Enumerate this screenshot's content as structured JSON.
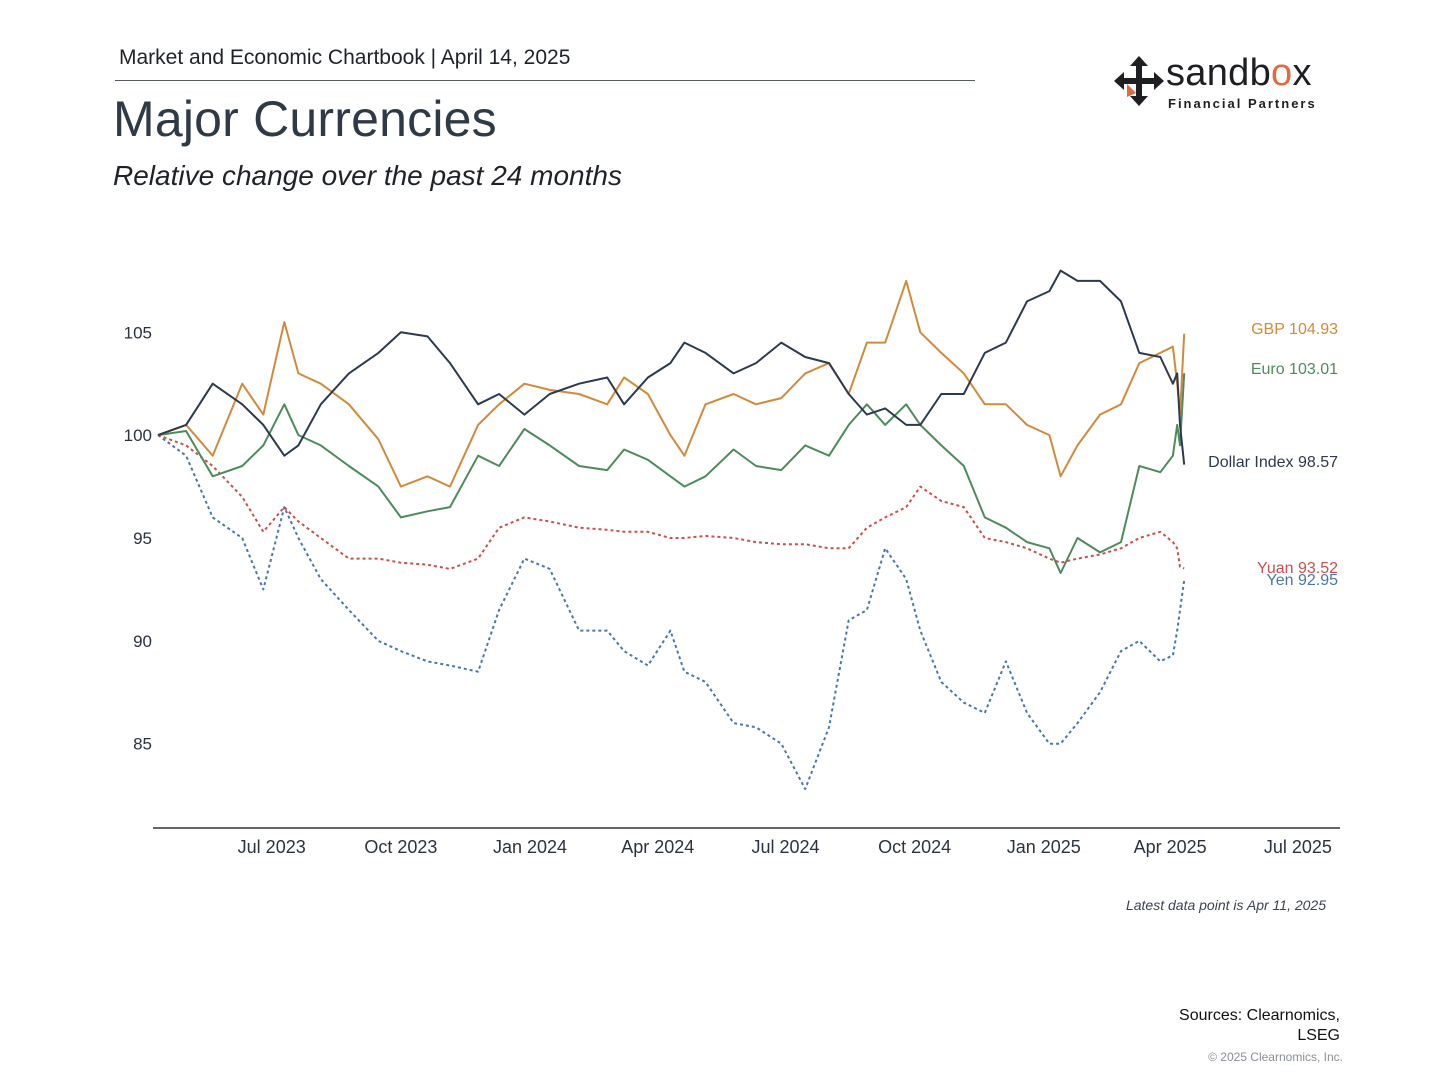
{
  "header": {
    "chartbook": "Market and Economic Chartbook | April 14, 2025",
    "title": "Major Currencies",
    "subtitle": "Relative change over the past 24 months"
  },
  "logo": {
    "word_main": "sandb",
    "word_accent": "o",
    "word_tail": "x",
    "tagline": "Financial Partners",
    "icon": "arrows-cross-icon",
    "colors": {
      "dark": "#1d1f22",
      "accent": "#e46a3d"
    }
  },
  "footer": {
    "latest": "Latest data point is Apr 11, 2025",
    "sources": "Sources: Clearnomics, LSEG",
    "copyright": "© 2025 Clearnomics, Inc."
  },
  "chart_data": {
    "type": "line",
    "title": "Major Currencies",
    "subtitle": "Relative change over the past 24 months",
    "xlabel": "",
    "ylabel": "",
    "grid": false,
    "x_range": [
      "2023-04-11",
      "2025-07-31"
    ],
    "ylim": [
      81,
      109
    ],
    "x_ticks": [
      {
        "date": "2023-07-01",
        "label": "Jul 2023"
      },
      {
        "date": "2023-10-01",
        "label": "Oct 2023"
      },
      {
        "date": "2024-01-01",
        "label": "Jan 2024"
      },
      {
        "date": "2024-04-01",
        "label": "Apr 2024"
      },
      {
        "date": "2024-07-01",
        "label": "Jul 2024"
      },
      {
        "date": "2024-10-01",
        "label": "Oct 2024"
      },
      {
        "date": "2025-01-01",
        "label": "Jan 2025"
      },
      {
        "date": "2025-04-01",
        "label": "Apr 2025"
      },
      {
        "date": "2025-07-01",
        "label": "Jul 2025"
      }
    ],
    "y_ticks": [
      85,
      90,
      95,
      100,
      105
    ],
    "series": [
      {
        "name": "GBP",
        "label": "GBP 104.93",
        "color": "#d18a3c",
        "dash": false,
        "points": [
          [
            "2023-04-11",
            100
          ],
          [
            "2023-05-01",
            100.5
          ],
          [
            "2023-05-20",
            99
          ],
          [
            "2023-06-10",
            102.5
          ],
          [
            "2023-06-25",
            101
          ],
          [
            "2023-07-10",
            105.5
          ],
          [
            "2023-07-20",
            103
          ],
          [
            "2023-08-05",
            102.5
          ],
          [
            "2023-08-25",
            101.5
          ],
          [
            "2023-09-15",
            99.8
          ],
          [
            "2023-10-01",
            97.5
          ],
          [
            "2023-10-20",
            98
          ],
          [
            "2023-11-05",
            97.5
          ],
          [
            "2023-11-25",
            100.5
          ],
          [
            "2023-12-10",
            101.5
          ],
          [
            "2023-12-28",
            102.5
          ],
          [
            "2024-01-15",
            102.2
          ],
          [
            "2024-02-05",
            102
          ],
          [
            "2024-02-25",
            101.5
          ],
          [
            "2024-03-08",
            102.8
          ],
          [
            "2024-03-25",
            102
          ],
          [
            "2024-04-10",
            100
          ],
          [
            "2024-04-20",
            99
          ],
          [
            "2024-05-05",
            101.5
          ],
          [
            "2024-05-25",
            102
          ],
          [
            "2024-06-10",
            101.5
          ],
          [
            "2024-06-28",
            101.8
          ],
          [
            "2024-07-15",
            103
          ],
          [
            "2024-08-01",
            103.5
          ],
          [
            "2024-08-15",
            102
          ],
          [
            "2024-08-28",
            104.5
          ],
          [
            "2024-09-10",
            104.5
          ],
          [
            "2024-09-25",
            107.5
          ],
          [
            "2024-10-05",
            105
          ],
          [
            "2024-10-20",
            104
          ],
          [
            "2024-11-05",
            103
          ],
          [
            "2024-11-20",
            101.5
          ],
          [
            "2024-12-05",
            101.5
          ],
          [
            "2024-12-20",
            100.5
          ],
          [
            "2025-01-05",
            100
          ],
          [
            "2025-01-13",
            98
          ],
          [
            "2025-01-25",
            99.5
          ],
          [
            "2025-02-10",
            101
          ],
          [
            "2025-02-25",
            101.5
          ],
          [
            "2025-03-10",
            103.5
          ],
          [
            "2025-03-25",
            104
          ],
          [
            "2025-04-03",
            104.3
          ],
          [
            "2025-04-06",
            102.5
          ],
          [
            "2025-04-08",
            101
          ],
          [
            "2025-04-11",
            104.93
          ]
        ]
      },
      {
        "name": "Euro",
        "label": "Euro 103.01",
        "color": "#4f8a5e",
        "dash": false,
        "points": [
          [
            "2023-04-11",
            100
          ],
          [
            "2023-05-01",
            100.2
          ],
          [
            "2023-05-20",
            98
          ],
          [
            "2023-06-10",
            98.5
          ],
          [
            "2023-06-25",
            99.5
          ],
          [
            "2023-07-10",
            101.5
          ],
          [
            "2023-07-20",
            100
          ],
          [
            "2023-08-05",
            99.5
          ],
          [
            "2023-08-25",
            98.5
          ],
          [
            "2023-09-15",
            97.5
          ],
          [
            "2023-10-01",
            96
          ],
          [
            "2023-10-20",
            96.3
          ],
          [
            "2023-11-05",
            96.5
          ],
          [
            "2023-11-25",
            99
          ],
          [
            "2023-12-10",
            98.5
          ],
          [
            "2023-12-28",
            100.3
          ],
          [
            "2024-01-15",
            99.5
          ],
          [
            "2024-02-05",
            98.5
          ],
          [
            "2024-02-25",
            98.3
          ],
          [
            "2024-03-08",
            99.3
          ],
          [
            "2024-03-25",
            98.8
          ],
          [
            "2024-04-10",
            98
          ],
          [
            "2024-04-20",
            97.5
          ],
          [
            "2024-05-05",
            98
          ],
          [
            "2024-05-25",
            99.3
          ],
          [
            "2024-06-10",
            98.5
          ],
          [
            "2024-06-28",
            98.3
          ],
          [
            "2024-07-15",
            99.5
          ],
          [
            "2024-08-01",
            99
          ],
          [
            "2024-08-15",
            100.5
          ],
          [
            "2024-08-28",
            101.5
          ],
          [
            "2024-09-10",
            100.5
          ],
          [
            "2024-09-25",
            101.5
          ],
          [
            "2024-10-05",
            100.5
          ],
          [
            "2024-10-20",
            99.5
          ],
          [
            "2024-11-05",
            98.5
          ],
          [
            "2024-11-20",
            96
          ],
          [
            "2024-12-05",
            95.5
          ],
          [
            "2024-12-20",
            94.8
          ],
          [
            "2025-01-05",
            94.5
          ],
          [
            "2025-01-13",
            93.3
          ],
          [
            "2025-01-25",
            95
          ],
          [
            "2025-02-10",
            94.3
          ],
          [
            "2025-02-25",
            94.8
          ],
          [
            "2025-03-10",
            98.5
          ],
          [
            "2025-03-25",
            98.2
          ],
          [
            "2025-04-03",
            99
          ],
          [
            "2025-04-06",
            100.5
          ],
          [
            "2025-04-08",
            99.5
          ],
          [
            "2025-04-11",
            103.01
          ]
        ]
      },
      {
        "name": "Dollar Index",
        "label": "Dollar Index 98.57",
        "color": "#2d3a4d",
        "dash": false,
        "points": [
          [
            "2023-04-11",
            100
          ],
          [
            "2023-05-01",
            100.5
          ],
          [
            "2023-05-20",
            102.5
          ],
          [
            "2023-06-10",
            101.5
          ],
          [
            "2023-06-25",
            100.5
          ],
          [
            "2023-07-10",
            99
          ],
          [
            "2023-07-20",
            99.5
          ],
          [
            "2023-08-05",
            101.5
          ],
          [
            "2023-08-25",
            103
          ],
          [
            "2023-09-15",
            104
          ],
          [
            "2023-10-01",
            105
          ],
          [
            "2023-10-20",
            104.8
          ],
          [
            "2023-11-05",
            103.5
          ],
          [
            "2023-11-25",
            101.5
          ],
          [
            "2023-12-10",
            102
          ],
          [
            "2023-12-28",
            101
          ],
          [
            "2024-01-15",
            102
          ],
          [
            "2024-02-05",
            102.5
          ],
          [
            "2024-02-25",
            102.8
          ],
          [
            "2024-03-08",
            101.5
          ],
          [
            "2024-03-25",
            102.8
          ],
          [
            "2024-04-10",
            103.5
          ],
          [
            "2024-04-20",
            104.5
          ],
          [
            "2024-05-05",
            104
          ],
          [
            "2024-05-25",
            103
          ],
          [
            "2024-06-10",
            103.5
          ],
          [
            "2024-06-28",
            104.5
          ],
          [
            "2024-07-15",
            103.8
          ],
          [
            "2024-08-01",
            103.5
          ],
          [
            "2024-08-15",
            102
          ],
          [
            "2024-08-28",
            101
          ],
          [
            "2024-09-10",
            101.3
          ],
          [
            "2024-09-25",
            100.5
          ],
          [
            "2024-10-05",
            100.5
          ],
          [
            "2024-10-20",
            102
          ],
          [
            "2024-11-05",
            102
          ],
          [
            "2024-11-20",
            104
          ],
          [
            "2024-12-05",
            104.5
          ],
          [
            "2024-12-20",
            106.5
          ],
          [
            "2025-01-05",
            107
          ],
          [
            "2025-01-13",
            108
          ],
          [
            "2025-01-25",
            107.5
          ],
          [
            "2025-02-10",
            107.5
          ],
          [
            "2025-02-25",
            106.5
          ],
          [
            "2025-03-10",
            104
          ],
          [
            "2025-03-25",
            103.8
          ],
          [
            "2025-04-03",
            102.5
          ],
          [
            "2025-04-06",
            103
          ],
          [
            "2025-04-08",
            100.5
          ],
          [
            "2025-04-11",
            98.57
          ]
        ]
      },
      {
        "name": "Yuan",
        "label": "Yuan 93.52",
        "color": "#c9504b",
        "dash": true,
        "points": [
          [
            "2023-04-11",
            100
          ],
          [
            "2023-05-01",
            99.5
          ],
          [
            "2023-05-20",
            98.5
          ],
          [
            "2023-06-10",
            97
          ],
          [
            "2023-06-25",
            95.3
          ],
          [
            "2023-07-10",
            96.5
          ],
          [
            "2023-07-20",
            95.8
          ],
          [
            "2023-08-05",
            95
          ],
          [
            "2023-08-25",
            94
          ],
          [
            "2023-09-15",
            94
          ],
          [
            "2023-10-01",
            93.8
          ],
          [
            "2023-10-20",
            93.7
          ],
          [
            "2023-11-05",
            93.5
          ],
          [
            "2023-11-25",
            94
          ],
          [
            "2023-12-10",
            95.5
          ],
          [
            "2023-12-28",
            96
          ],
          [
            "2024-01-15",
            95.8
          ],
          [
            "2024-02-05",
            95.5
          ],
          [
            "2024-02-25",
            95.4
          ],
          [
            "2024-03-08",
            95.3
          ],
          [
            "2024-03-25",
            95.3
          ],
          [
            "2024-04-10",
            95
          ],
          [
            "2024-04-20",
            95
          ],
          [
            "2024-05-05",
            95.1
          ],
          [
            "2024-05-25",
            95
          ],
          [
            "2024-06-10",
            94.8
          ],
          [
            "2024-06-28",
            94.7
          ],
          [
            "2024-07-15",
            94.7
          ],
          [
            "2024-08-01",
            94.5
          ],
          [
            "2024-08-15",
            94.5
          ],
          [
            "2024-08-28",
            95.5
          ],
          [
            "2024-09-10",
            96
          ],
          [
            "2024-09-25",
            96.5
          ],
          [
            "2024-10-05",
            97.5
          ],
          [
            "2024-10-20",
            96.8
          ],
          [
            "2024-11-05",
            96.5
          ],
          [
            "2024-11-20",
            95
          ],
          [
            "2024-12-05",
            94.8
          ],
          [
            "2024-12-20",
            94.5
          ],
          [
            "2025-01-05",
            94
          ],
          [
            "2025-01-13",
            93.8
          ],
          [
            "2025-01-25",
            94
          ],
          [
            "2025-02-10",
            94.2
          ],
          [
            "2025-02-25",
            94.5
          ],
          [
            "2025-03-10",
            95
          ],
          [
            "2025-03-25",
            95.3
          ],
          [
            "2025-04-03",
            94.8
          ],
          [
            "2025-04-06",
            94.5
          ],
          [
            "2025-04-08",
            93.6
          ],
          [
            "2025-04-11",
            93.52
          ]
        ]
      },
      {
        "name": "Yen",
        "label": "Yen 92.95",
        "color": "#4a76a8",
        "dash": true,
        "points": [
          [
            "2023-04-11",
            100
          ],
          [
            "2023-05-01",
            99
          ],
          [
            "2023-05-20",
            96
          ],
          [
            "2023-06-10",
            95
          ],
          [
            "2023-06-25",
            92.5
          ],
          [
            "2023-07-10",
            96.5
          ],
          [
            "2023-07-20",
            95
          ],
          [
            "2023-08-05",
            93
          ],
          [
            "2023-08-25",
            91.5
          ],
          [
            "2023-09-15",
            90
          ],
          [
            "2023-10-01",
            89.5
          ],
          [
            "2023-10-20",
            89
          ],
          [
            "2023-11-05",
            88.8
          ],
          [
            "2023-11-25",
            88.5
          ],
          [
            "2023-12-10",
            91.5
          ],
          [
            "2023-12-28",
            94
          ],
          [
            "2024-01-15",
            93.5
          ],
          [
            "2024-02-05",
            90.5
          ],
          [
            "2024-02-25",
            90.5
          ],
          [
            "2024-03-08",
            89.5
          ],
          [
            "2024-03-25",
            88.8
          ],
          [
            "2024-04-10",
            90.5
          ],
          [
            "2024-04-20",
            88.5
          ],
          [
            "2024-05-05",
            88
          ],
          [
            "2024-05-25",
            86
          ],
          [
            "2024-06-10",
            85.8
          ],
          [
            "2024-06-28",
            85
          ],
          [
            "2024-07-15",
            82.8
          ],
          [
            "2024-08-01",
            85.8
          ],
          [
            "2024-08-15",
            91
          ],
          [
            "2024-08-28",
            91.5
          ],
          [
            "2024-09-10",
            94.5
          ],
          [
            "2024-09-25",
            93
          ],
          [
            "2024-10-05",
            90.5
          ],
          [
            "2024-10-20",
            88
          ],
          [
            "2024-11-05",
            87
          ],
          [
            "2024-11-20",
            86.5
          ],
          [
            "2024-12-05",
            89
          ],
          [
            "2024-12-20",
            86.5
          ],
          [
            "2025-01-05",
            85
          ],
          [
            "2025-01-13",
            85
          ],
          [
            "2025-01-25",
            86
          ],
          [
            "2025-02-10",
            87.5
          ],
          [
            "2025-02-25",
            89.5
          ],
          [
            "2025-03-10",
            90
          ],
          [
            "2025-03-25",
            89
          ],
          [
            "2025-04-03",
            89.3
          ],
          [
            "2025-04-06",
            90.5
          ],
          [
            "2025-04-08",
            91.5
          ],
          [
            "2025-04-11",
            92.95
          ]
        ]
      }
    ],
    "end_labels": [
      {
        "series": "GBP",
        "text": "GBP 104.93",
        "color": "#d18a3c"
      },
      {
        "series": "Euro",
        "text": "Euro 103.01",
        "color": "#4f8a5e"
      },
      {
        "series": "Dollar Index",
        "text": "Dollar Index 98.57",
        "color": "#2d3a4d"
      },
      {
        "series": "Yuan",
        "text": "Yuan 93.52",
        "color": "#c9504b"
      },
      {
        "series": "Yen",
        "text": "Yen 92.95",
        "color": "#4a76a8"
      }
    ],
    "legend": "none (direct end labels at right)"
  }
}
